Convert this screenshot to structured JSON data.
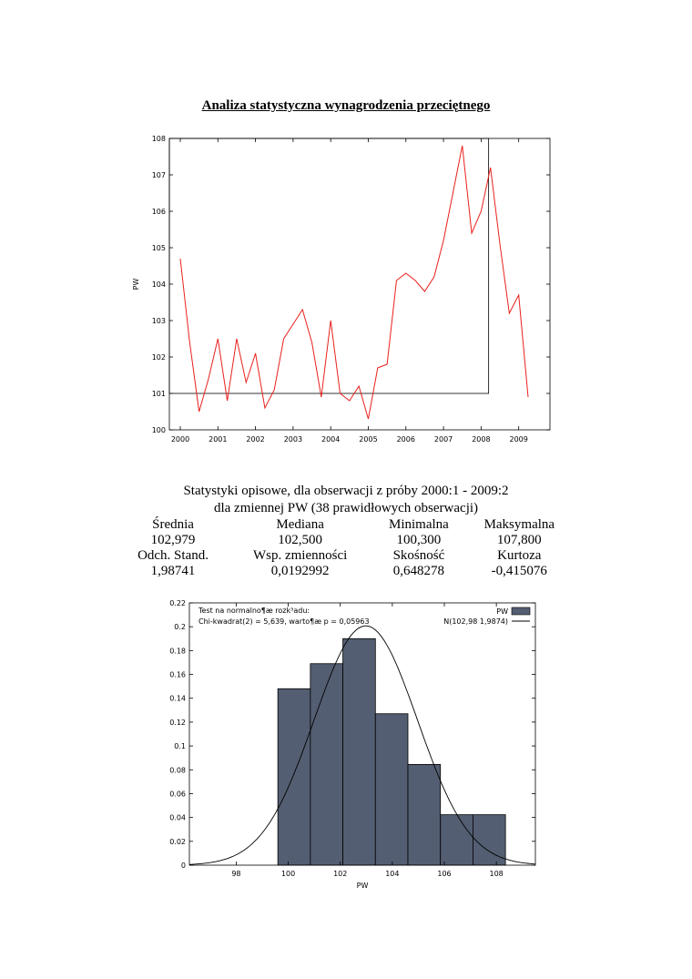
{
  "title": "Analiza statystyczna wynagrodzenia przeciętnego",
  "stats": {
    "line1": "Statystyki opisowe, dla obserwacji z próby 2000:1 - 2009:2",
    "line2": "dla zmiennej PW (38 prawidłowych obserwacji)",
    "rows": [
      [
        "Średnia",
        "Mediana",
        "Minimalna",
        "Maksymalna"
      ],
      [
        "102,979",
        "102,500",
        "100,300",
        "107,800"
      ],
      [
        "Odch. Stand.",
        "Wsp. zmienności",
        "Skośność",
        "Kurtoza"
      ],
      [
        "1,98741",
        "0,0192992",
        "0,648278",
        "-0,415076"
      ]
    ]
  },
  "chart_data": [
    {
      "type": "line",
      "ylabel": "PW",
      "xlim": [
        2000,
        2009.25
      ],
      "ylim": [
        100,
        108
      ],
      "x_ticks": [
        "2000",
        "2001",
        "2002",
        "2003",
        "2004",
        "2005",
        "2006",
        "2007",
        "2008",
        "2009"
      ],
      "y_ticks": [
        "100",
        "101",
        "102",
        "103",
        "104",
        "105",
        "106",
        "107",
        "108"
      ],
      "series_color": "#e8201c",
      "series": [
        {
          "x": [
            2000.0,
            2000.25,
            2000.5,
            2000.75,
            2001.0,
            2001.25,
            2001.5,
            2001.75,
            2002.0,
            2002.25,
            2002.5,
            2002.75,
            2003.0,
            2003.25,
            2003.5,
            2003.75,
            2004.0,
            2004.25,
            2004.5,
            2004.75,
            2005.0,
            2005.25,
            2005.5,
            2005.75,
            2006.0,
            2006.25,
            2006.5,
            2006.75,
            2007.0,
            2007.25,
            2007.5,
            2007.75,
            2008.0,
            2008.25,
            2008.5,
            2008.75,
            2009.0,
            2009.25
          ],
          "values": [
            104.7,
            102.4,
            100.5,
            101.4,
            102.5,
            100.8,
            102.5,
            101.3,
            102.1,
            100.6,
            101.1,
            102.5,
            102.9,
            103.3,
            102.4,
            100.9,
            103.0,
            101.0,
            100.8,
            101.2,
            100.3,
            101.7,
            101.8,
            104.1,
            104.3,
            104.1,
            103.8,
            104.2,
            105.2,
            106.5,
            107.8,
            105.4,
            106.0,
            107.2,
            105.1,
            103.2,
            103.7,
            100.9
          ]
        }
      ],
      "box": {
        "x": [
          2000,
          2008.2
        ],
        "y": [
          101,
          108
        ]
      }
    },
    {
      "type": "bar",
      "xlabel": "PW",
      "xlim": [
        96.2,
        109.5
      ],
      "ylim": [
        0,
        0.22
      ],
      "x_ticks": [
        "98",
        "100",
        "102",
        "104",
        "106",
        "108"
      ],
      "y_ticks": [
        "0",
        "0.02",
        "0.04",
        "0.06",
        "0.08",
        "0.1",
        "0.12",
        "0.14",
        "0.16",
        "0.18",
        "0.2",
        "0.22"
      ],
      "bar_color": "#545e72",
      "bins": [
        {
          "from": 99.6,
          "to": 100.85,
          "value": 0.148
        },
        {
          "from": 100.85,
          "to": 102.1,
          "value": 0.169
        },
        {
          "from": 102.1,
          "to": 103.35,
          "value": 0.19
        },
        {
          "from": 103.35,
          "to": 104.6,
          "value": 0.127
        },
        {
          "from": 104.6,
          "to": 105.85,
          "value": 0.0845
        },
        {
          "from": 105.85,
          "to": 107.1,
          "value": 0.0423
        },
        {
          "from": 107.1,
          "to": 108.35,
          "value": 0.0423
        }
      ],
      "normal": {
        "mean": 102.98,
        "sd": 1.9874
      },
      "annotation1": "Test na normalno¶æ rozk³adu:",
      "annotation2": "Chi-kwadrat(2) = 5,639, warto¶æ p = 0,05963",
      "legend": [
        {
          "label": "PW",
          "kind": "box"
        },
        {
          "label": "N(102,98 1,9874)",
          "kind": "line"
        }
      ],
      "legend_position": "top-right"
    }
  ]
}
